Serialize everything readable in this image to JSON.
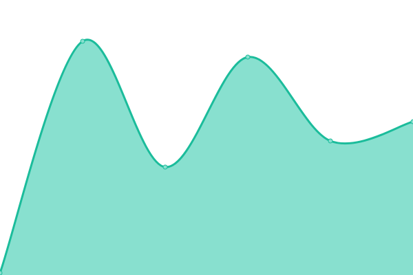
{
  "chart_data": {
    "type": "area",
    "x": [
      0,
      1,
      2,
      3,
      4,
      5
    ],
    "values": [
      0.75,
      85,
      39.25,
      79.25,
      48.75,
      55.75
    ],
    "ylim": [
      0,
      100
    ],
    "xlim": [
      0,
      5
    ],
    "grid": false,
    "axes_visible": false,
    "curve": "smooth",
    "colors": {
      "fill": "#88e0cf",
      "line": "#1bbc9b",
      "point_fill": "#88e0cf",
      "point_stroke": "#1bbc9b"
    }
  }
}
